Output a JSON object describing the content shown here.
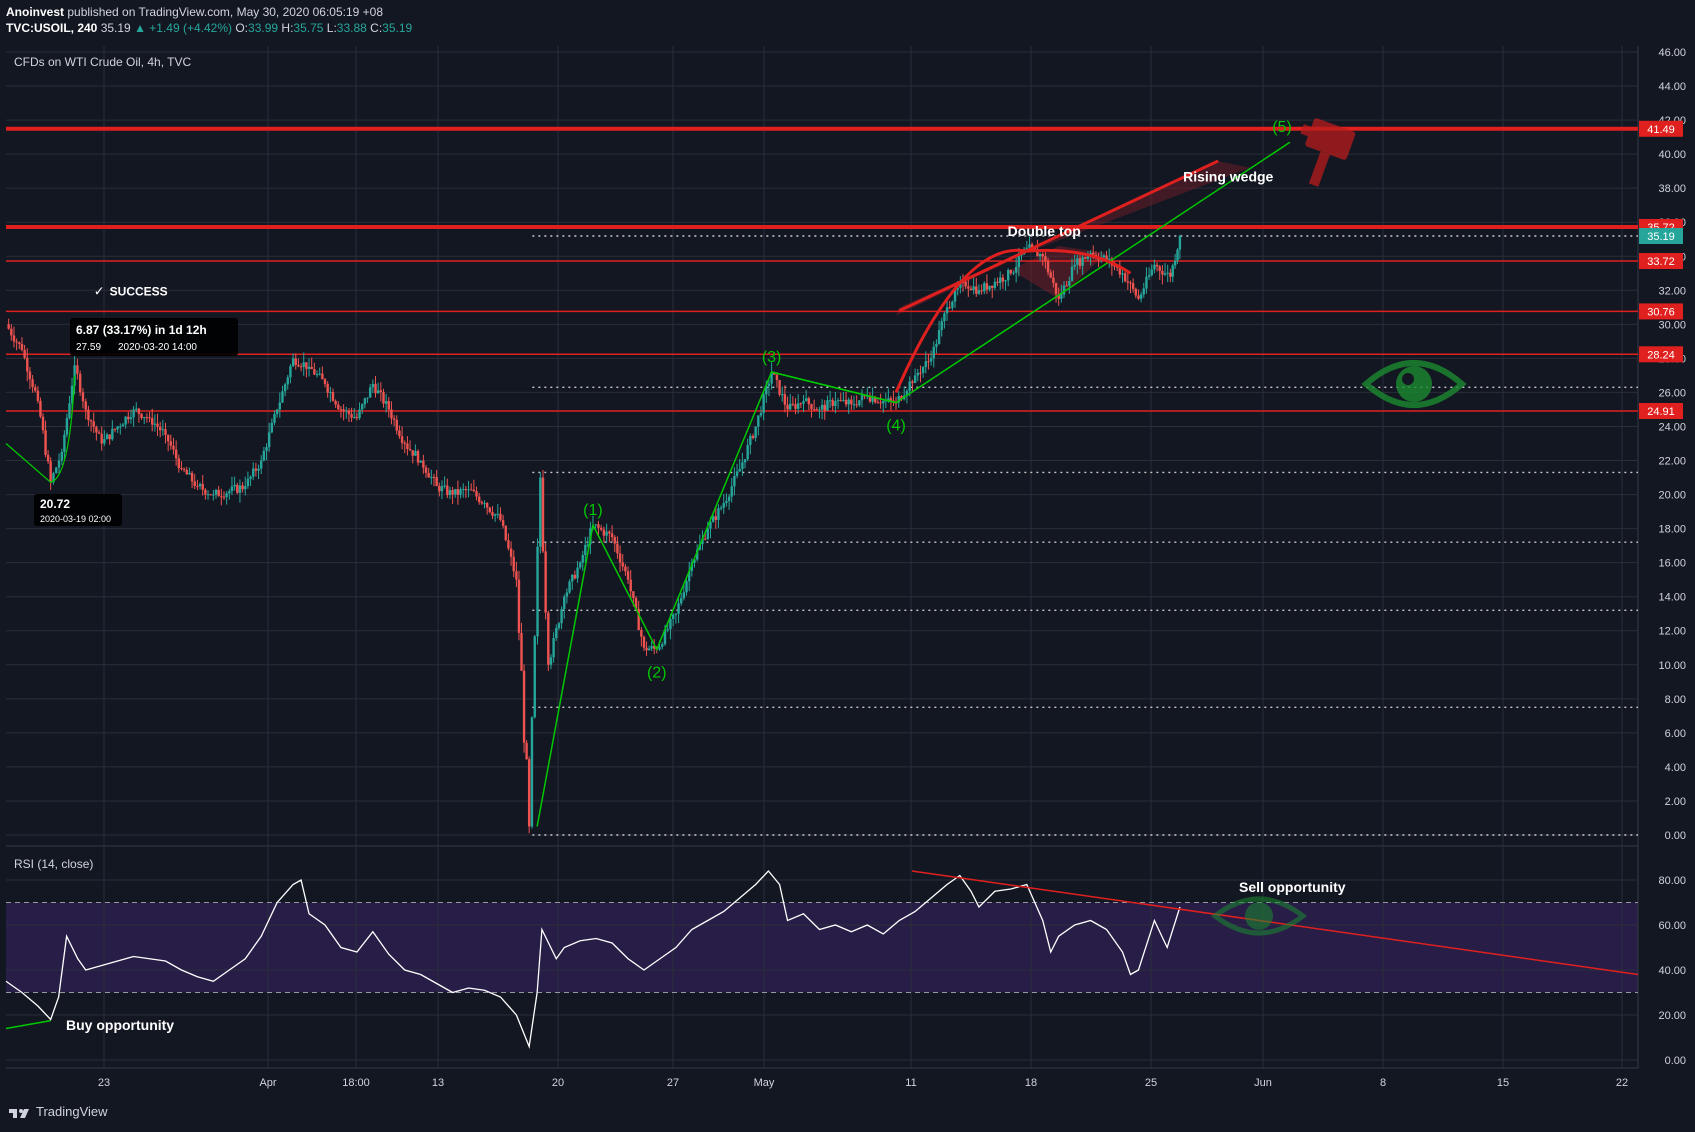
{
  "header": {
    "author": "Anoinvest",
    "published": " published on TradingView.com, May 30, 2020 06:05:19 +08",
    "symbol": "TVC:USOIL, 240",
    "last": " 35.19",
    "change": " ▲ +1.49 (+4.42%)",
    "o_label": " O:",
    "o": "33.99",
    "h_label": " H:",
    "h": "35.75",
    "l_label": " L:",
    "l": "33.88",
    "c_label": " C:",
    "c": "35.19"
  },
  "footer": {
    "brand": "TradingView"
  },
  "colors": {
    "background": "#131722",
    "grid": "#2a2e39",
    "up": "#26a69a",
    "down": "#ef5350",
    "resistance": "#e0201e",
    "wave": "#00c800",
    "rsi_band": "#2a1e4a",
    "price_badge": "#26a69a"
  },
  "chart_data": [
    {
      "type": "candlestick",
      "title": "CFDs on WTI Crude Oil, 4h, TVC",
      "x_ticks": [
        "23",
        "Apr",
        "18:00",
        "13",
        "20",
        "27",
        "May",
        "11",
        "18",
        "25",
        "Jun",
        "8",
        "15",
        "22"
      ],
      "y_ticks": [
        "46.00",
        "44.00",
        "42.00",
        "40.00",
        "38.00",
        "36.00",
        "34.00",
        "32.00",
        "30.00",
        "28.00",
        "26.00",
        "24.00",
        "22.00",
        "20.00",
        "18.00",
        "16.00",
        "14.00",
        "12.00",
        "10.00",
        "8.00",
        "6.00",
        "4.00",
        "2.00",
        "0.00"
      ],
      "ylim": [
        0,
        46
      ],
      "x_unit": "days since Mar 17, 2020",
      "approx_close_path": [
        [
          0,
          30.0
        ],
        [
          1,
          28.5
        ],
        [
          2,
          25.5
        ],
        [
          2.8,
          20.72
        ],
        [
          3.5,
          22.5
        ],
        [
          4.3,
          27.59
        ],
        [
          5,
          25
        ],
        [
          6,
          23
        ],
        [
          7,
          24
        ],
        [
          8,
          25
        ],
        [
          9,
          24.5
        ],
        [
          10,
          23.5
        ],
        [
          11,
          21.5
        ],
        [
          12,
          20.5
        ],
        [
          13,
          20
        ],
        [
          14,
          20.2
        ],
        [
          15,
          20.5
        ],
        [
          16,
          22
        ],
        [
          17,
          25
        ],
        [
          18,
          28
        ],
        [
          19,
          27.5
        ],
        [
          20,
          26.5
        ],
        [
          21,
          25
        ],
        [
          22,
          24.5
        ],
        [
          23,
          26.5
        ],
        [
          24,
          25
        ],
        [
          25,
          23
        ],
        [
          26,
          22
        ],
        [
          27,
          20.5
        ],
        [
          28,
          20
        ],
        [
          29,
          20.3
        ],
        [
          30,
          19.5
        ],
        [
          31,
          18.5
        ],
        [
          32,
          15
        ],
        [
          32.8,
          0.5
        ],
        [
          33.5,
          21
        ],
        [
          34,
          10
        ],
        [
          35,
          14
        ],
        [
          36,
          16
        ],
        [
          36.8,
          18.2
        ],
        [
          38,
          17.5
        ],
        [
          39,
          15
        ],
        [
          40,
          11
        ],
        [
          40.8,
          10.9
        ],
        [
          42,
          13
        ],
        [
          43,
          16
        ],
        [
          44,
          18
        ],
        [
          45,
          19.5
        ],
        [
          46,
          21.5
        ],
        [
          47,
          24
        ],
        [
          48,
          27.2
        ],
        [
          49,
          25
        ],
        [
          50,
          25.5
        ],
        [
          51,
          25
        ],
        [
          52,
          25.5
        ],
        [
          53,
          25.3
        ],
        [
          54,
          25.8
        ],
        [
          55,
          25.5
        ],
        [
          55.8,
          25.4
        ],
        [
          57,
          27
        ],
        [
          58,
          28
        ],
        [
          59,
          31
        ],
        [
          60,
          32.5
        ],
        [
          61,
          32
        ],
        [
          62,
          32.5
        ],
        [
          63,
          33
        ],
        [
          64,
          34.5
        ],
        [
          65,
          34
        ],
        [
          66,
          31.5
        ],
        [
          67,
          33.5
        ],
        [
          68,
          34.2
        ],
        [
          69,
          33.8
        ],
        [
          70,
          33
        ],
        [
          71,
          31.5
        ],
        [
          72,
          33.5
        ],
        [
          73,
          32.8
        ],
        [
          73.6,
          35.19
        ]
      ],
      "horizontal_levels": [
        {
          "value": 41.49,
          "label": "41.49",
          "style": "resistance"
        },
        {
          "value": 35.72,
          "label": "35.72",
          "style": "resistance"
        },
        {
          "value": 33.72,
          "label": "33.72",
          "style": "resistance"
        },
        {
          "value": 30.76,
          "label": "30.76",
          "style": "resistance"
        },
        {
          "value": 28.24,
          "label": "28.24",
          "style": "resistance"
        },
        {
          "value": 24.91,
          "label": "24.91",
          "style": "resistance"
        }
      ],
      "dotted_levels": [
        35.19,
        26.3,
        21.3,
        17.2,
        13.2,
        7.5,
        0.0
      ],
      "dotted_start_day": 33,
      "last_price": {
        "value": 35.19,
        "label": "35.19"
      },
      "waves": [
        {
          "label": "(1)",
          "x": 36.8,
          "y": 18.2
        },
        {
          "label": "(2)",
          "x": 40.8,
          "y": 10.9
        },
        {
          "label": "(3)",
          "x": 48,
          "y": 27.2
        },
        {
          "label": "(4)",
          "x": 55.8,
          "y": 25.4
        },
        {
          "label": "(5)",
          "x": 80,
          "y": 40.7
        }
      ],
      "annotations": {
        "success": "SUCCESS",
        "measure": "6.87 (33.17%) in 1d 12h",
        "measure_sub": "27.59",
        "measure_time": "2020-03-20  14:00",
        "low_value": "20.72",
        "low_time": "2020-03-19 02:00",
        "double_top": "Double top",
        "rising_wedge": "Rising wedge"
      }
    },
    {
      "type": "line",
      "title": "RSI (14, close)",
      "y_ticks": [
        "80.00",
        "60.00",
        "40.00",
        "20.00",
        "0.00"
      ],
      "ylim": [
        0,
        90
      ],
      "overbought": 70,
      "oversold": 30,
      "values": [
        [
          0,
          35
        ],
        [
          1,
          30
        ],
        [
          2,
          24
        ],
        [
          2.8,
          18
        ],
        [
          3.3,
          28
        ],
        [
          3.8,
          55
        ],
        [
          4.5,
          45
        ],
        [
          5,
          40
        ],
        [
          6,
          42
        ],
        [
          7,
          44
        ],
        [
          8,
          46
        ],
        [
          9,
          45
        ],
        [
          10,
          44
        ],
        [
          11,
          40
        ],
        [
          12,
          37
        ],
        [
          13,
          35
        ],
        [
          14,
          40
        ],
        [
          15,
          45
        ],
        [
          16,
          55
        ],
        [
          17,
          70
        ],
        [
          18,
          78
        ],
        [
          18.5,
          80
        ],
        [
          19,
          65
        ],
        [
          20,
          60
        ],
        [
          21,
          50
        ],
        [
          22,
          48
        ],
        [
          23,
          57
        ],
        [
          24,
          47
        ],
        [
          25,
          40
        ],
        [
          26,
          38
        ],
        [
          27,
          34
        ],
        [
          28,
          30
        ],
        [
          29,
          32
        ],
        [
          30,
          31
        ],
        [
          31,
          28
        ],
        [
          32,
          20
        ],
        [
          32.8,
          6
        ],
        [
          33.3,
          30
        ],
        [
          33.6,
          58
        ],
        [
          34.5,
          45
        ],
        [
          35,
          50
        ],
        [
          36,
          53
        ],
        [
          37,
          54
        ],
        [
          38,
          52
        ],
        [
          39,
          45
        ],
        [
          40,
          40
        ],
        [
          41,
          45
        ],
        [
          42,
          50
        ],
        [
          43,
          58
        ],
        [
          44,
          62
        ],
        [
          45,
          66
        ],
        [
          46,
          72
        ],
        [
          47,
          78
        ],
        [
          47.8,
          84
        ],
        [
          48.5,
          78
        ],
        [
          49,
          62
        ],
        [
          50,
          65
        ],
        [
          51,
          58
        ],
        [
          52,
          60
        ],
        [
          53,
          57
        ],
        [
          54,
          60
        ],
        [
          55,
          56
        ],
        [
          56,
          62
        ],
        [
          57,
          66
        ],
        [
          58,
          72
        ],
        [
          59,
          78
        ],
        [
          59.8,
          82
        ],
        [
          60.5,
          75
        ],
        [
          61,
          68
        ],
        [
          62,
          75
        ],
        [
          63,
          76
        ],
        [
          64,
          78
        ],
        [
          65,
          62
        ],
        [
          65.5,
          48
        ],
        [
          66,
          55
        ],
        [
          67,
          60
        ],
        [
          68,
          62
        ],
        [
          69,
          58
        ],
        [
          70,
          48
        ],
        [
          70.5,
          38
        ],
        [
          71,
          40
        ],
        [
          72,
          62
        ],
        [
          72.8,
          50
        ],
        [
          73.6,
          68
        ]
      ],
      "annotations": {
        "buy": "Buy opportunity",
        "sell": "Sell opportunity"
      }
    }
  ]
}
